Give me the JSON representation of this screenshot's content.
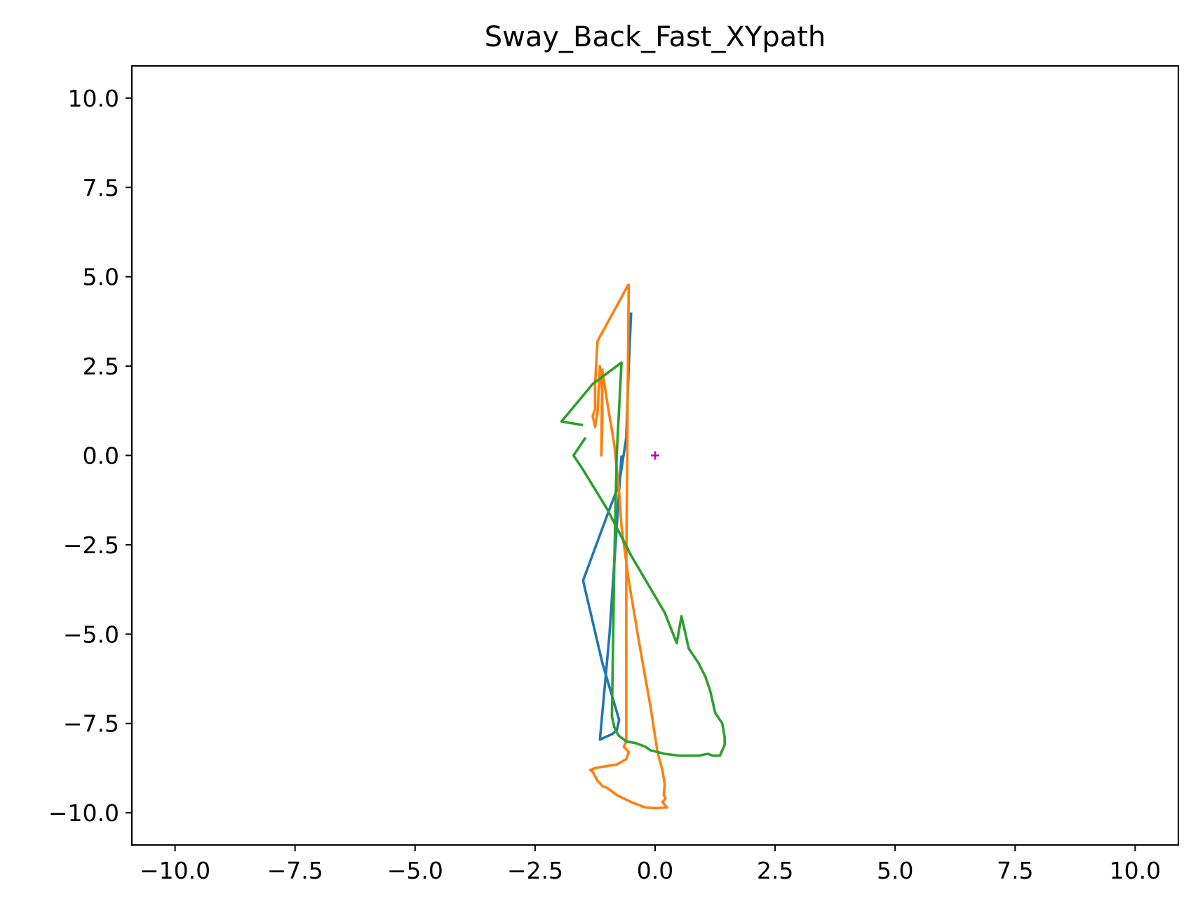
{
  "chart_data": {
    "type": "line",
    "title": "Sway_Back_Fast_XYpath",
    "xlabel": "",
    "ylabel": "",
    "xlim": [
      -10.9,
      10.9
    ],
    "ylim": [
      -10.9,
      10.9
    ],
    "grid": false,
    "x_ticks": [
      -10.0,
      -7.5,
      -5.0,
      -2.5,
      0.0,
      2.5,
      5.0,
      7.5,
      10.0
    ],
    "y_ticks": [
      -10.0,
      -7.5,
      -5.0,
      -2.5,
      0.0,
      2.5,
      5.0,
      7.5,
      10.0
    ],
    "x_tick_labels": [
      "−10.0",
      "−7.5",
      "−5.0",
      "−2.5",
      "0.0",
      "2.5",
      "5.0",
      "7.5",
      "10.0"
    ],
    "y_tick_labels": [
      "10.0",
      "7.5",
      "5.0",
      "2.5",
      "0.0",
      "−2.5",
      "−5.0",
      "−7.5",
      "−10.0"
    ],
    "series": [
      {
        "color": "#1f77b4",
        "points": [
          [
            -0.5,
            4.0
          ],
          [
            -0.55,
            2.5
          ],
          [
            -0.6,
            0.5
          ],
          [
            -0.75,
            -0.8
          ],
          [
            -0.95,
            -1.5
          ],
          [
            -1.5,
            -3.5
          ],
          [
            -1.1,
            -5.8
          ],
          [
            -0.75,
            -7.4
          ],
          [
            -0.8,
            -7.7
          ],
          [
            -0.9,
            -7.8
          ],
          [
            -1.15,
            -7.95
          ],
          [
            -0.95,
            -5.0
          ],
          [
            -0.75,
            -1.0
          ],
          [
            -0.7,
            0.0
          ]
        ]
      },
      {
        "color": "#ff7f0e",
        "points": [
          [
            -0.55,
            4.8
          ],
          [
            -1.2,
            3.2
          ],
          [
            -1.25,
            2.0
          ],
          [
            -1.25,
            1.3
          ],
          [
            -1.3,
            1.1
          ],
          [
            -1.25,
            0.8
          ],
          [
            -1.2,
            1.2
          ],
          [
            -1.15,
            2.5
          ],
          [
            -1.1,
            1.8
          ],
          [
            -1.1,
            0.9
          ],
          [
            -1.12,
            0.0
          ],
          [
            -1.1,
            2.4
          ],
          [
            -1.0,
            1.5
          ],
          [
            -0.85,
            0.3
          ],
          [
            -0.75,
            -1.0
          ],
          [
            -0.7,
            -2.0
          ],
          [
            -0.55,
            -3.5
          ],
          [
            -0.3,
            -5.5
          ],
          [
            -0.1,
            -7.0
          ],
          [
            0.05,
            -8.3
          ],
          [
            0.15,
            -8.8
          ],
          [
            0.2,
            -9.2
          ],
          [
            0.18,
            -9.5
          ],
          [
            0.22,
            -9.6
          ],
          [
            0.15,
            -9.7
          ],
          [
            0.25,
            -9.85
          ],
          [
            0.0,
            -9.87
          ],
          [
            -0.2,
            -9.85
          ],
          [
            -0.5,
            -9.7
          ],
          [
            -0.8,
            -9.5
          ],
          [
            -1.0,
            -9.3
          ],
          [
            -1.1,
            -9.25
          ],
          [
            -1.2,
            -9.1
          ],
          [
            -1.3,
            -8.85
          ],
          [
            -1.35,
            -8.8
          ],
          [
            -1.25,
            -8.75
          ],
          [
            -1.05,
            -8.7
          ],
          [
            -0.8,
            -8.65
          ],
          [
            -0.6,
            -8.5
          ],
          [
            -0.55,
            -8.3
          ],
          [
            -0.65,
            -8.15
          ],
          [
            -0.6,
            -8.0
          ],
          [
            -0.6,
            -6.0
          ],
          [
            -0.6,
            -3.0
          ],
          [
            -0.58,
            0.0
          ],
          [
            -0.57,
            2.0
          ],
          [
            -0.55,
            4.8
          ]
        ]
      },
      {
        "color": "#2ca02c",
        "points": [
          [
            -1.45,
            0.5
          ],
          [
            -1.7,
            0.0
          ],
          [
            -1.5,
            -0.4
          ],
          [
            -1.0,
            -1.5
          ],
          [
            -0.5,
            -2.8
          ],
          [
            0.2,
            -4.4
          ],
          [
            0.45,
            -5.25
          ],
          [
            0.55,
            -4.5
          ],
          [
            0.6,
            -4.8
          ],
          [
            0.65,
            -5.1
          ],
          [
            0.7,
            -5.4
          ],
          [
            0.9,
            -5.8
          ],
          [
            1.05,
            -6.2
          ],
          [
            1.15,
            -6.6
          ],
          [
            1.25,
            -7.2
          ],
          [
            1.4,
            -7.5
          ],
          [
            1.45,
            -7.9
          ],
          [
            1.45,
            -8.1
          ],
          [
            1.35,
            -8.4
          ],
          [
            1.2,
            -8.4
          ],
          [
            1.1,
            -8.35
          ],
          [
            0.9,
            -8.4
          ],
          [
            0.7,
            -8.4
          ],
          [
            0.5,
            -8.4
          ],
          [
            0.2,
            -8.35
          ],
          [
            -0.1,
            -8.25
          ],
          [
            -0.2,
            -8.15
          ],
          [
            -0.4,
            -8.05
          ],
          [
            -0.6,
            -8.0
          ],
          [
            -0.75,
            -7.85
          ],
          [
            -0.8,
            -7.75
          ],
          [
            -0.85,
            -7.6
          ],
          [
            -0.9,
            -7.3
          ],
          [
            -0.85,
            -3.0
          ],
          [
            -0.8,
            0.0
          ],
          [
            -0.7,
            2.6
          ],
          [
            -1.3,
            2.0
          ],
          [
            -1.95,
            0.95
          ],
          [
            -1.5,
            0.85
          ]
        ]
      }
    ],
    "origin_marker": {
      "x": 0.0,
      "y": 0.0,
      "color": "#c000c0",
      "symbol": "+"
    }
  }
}
